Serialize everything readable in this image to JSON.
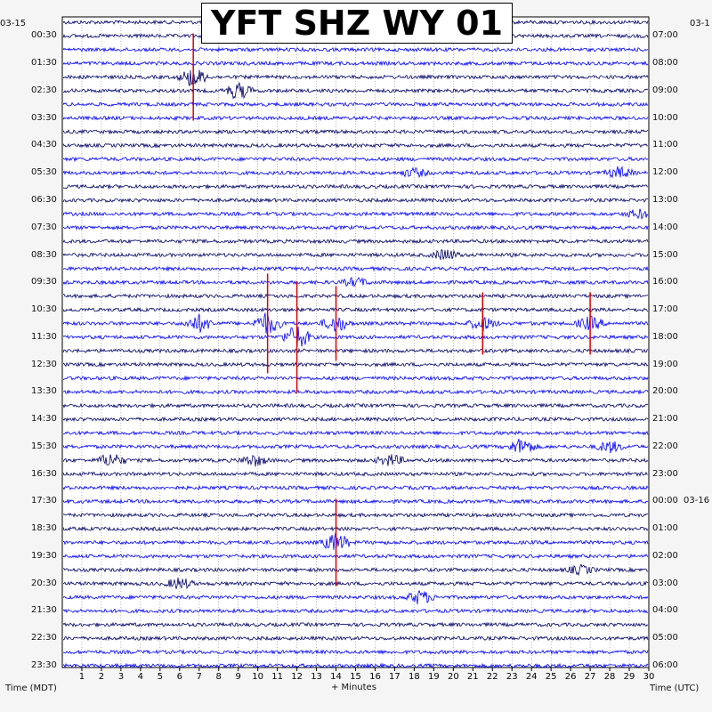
{
  "title": "YFT SHZ WY 01",
  "date_left": "03-15",
  "date_right_top": "03-1",
  "date_right_mid": "03-16",
  "xlabel": "+ Minutes",
  "left_axis_label": "Time (MDT)",
  "right_axis_label": "Time (UTC)",
  "colors": {
    "trace_a": "#000066",
    "trace_b": "#0000ff",
    "clipped": "#dd0000",
    "grid": "#888888"
  },
  "chart_data": {
    "type": "helicorder",
    "title": "YFT SHZ WY 01",
    "xlabel": "+ Minutes",
    "xlim": [
      0,
      30
    ],
    "x_ticks": [
      1,
      2,
      3,
      4,
      5,
      6,
      7,
      8,
      9,
      10,
      11,
      12,
      13,
      14,
      15,
      16,
      17,
      18,
      19,
      20,
      21,
      22,
      23,
      24,
      25,
      26,
      27,
      28,
      29,
      30
    ],
    "left_ticks": [
      "00:30",
      "01:30",
      "02:30",
      "03:30",
      "04:30",
      "05:30",
      "06:30",
      "07:30",
      "08:30",
      "09:30",
      "10:30",
      "11:30",
      "12:30",
      "13:30",
      "14:30",
      "15:30",
      "16:30",
      "17:30",
      "18:30",
      "19:30",
      "20:30",
      "21:30",
      "22:30",
      "23:30"
    ],
    "right_ticks": [
      "07:00",
      "08:00",
      "09:00",
      "10:00",
      "11:00",
      "12:00",
      "13:00",
      "14:00",
      "15:00",
      "16:00",
      "17:00",
      "18:00",
      "19:00",
      "20:00",
      "21:00",
      "22:00",
      "23:00",
      "00:00",
      "01:00",
      "02:00",
      "03:00",
      "04:00",
      "05:00",
      "06:00"
    ],
    "traces_per_label": 2,
    "events": [
      {
        "minute": 6.7,
        "line": 4,
        "amp": 3.5,
        "clipped": true
      },
      {
        "minute": 9.0,
        "line": 5,
        "amp": 3.0
      },
      {
        "minute": 18.0,
        "line": 11,
        "amp": 1.5
      },
      {
        "minute": 28.5,
        "line": 11,
        "amp": 2.0
      },
      {
        "minute": 29.5,
        "line": 14,
        "amp": 1.5
      },
      {
        "minute": 19.6,
        "line": 17,
        "amp": 2.0
      },
      {
        "minute": 15.0,
        "line": 19,
        "amp": 1.5
      },
      {
        "minute": 7.0,
        "line": 22,
        "amp": 3.0
      },
      {
        "minute": 10.5,
        "line": 22,
        "amp": 4.0,
        "clipped": true
      },
      {
        "minute": 12.0,
        "line": 23,
        "amp": 4.5,
        "clipped": true
      },
      {
        "minute": 14.0,
        "line": 22,
        "amp": 3.0,
        "clipped": true
      },
      {
        "minute": 21.5,
        "line": 22,
        "amp": 2.5,
        "clipped": true
      },
      {
        "minute": 27.0,
        "line": 22,
        "amp": 2.5,
        "clipped": true
      },
      {
        "minute": 23.5,
        "line": 31,
        "amp": 3.0
      },
      {
        "minute": 28.0,
        "line": 31,
        "amp": 2.0
      },
      {
        "minute": 2.5,
        "line": 32,
        "amp": 2.5
      },
      {
        "minute": 9.8,
        "line": 32,
        "amp": 2.0
      },
      {
        "minute": 16.8,
        "line": 32,
        "amp": 2.0
      },
      {
        "minute": 14.0,
        "line": 38,
        "amp": 3.5,
        "clipped": true
      },
      {
        "minute": 26.5,
        "line": 40,
        "amp": 1.5
      },
      {
        "minute": 6.0,
        "line": 41,
        "amp": 2.0
      },
      {
        "minute": 18.3,
        "line": 42,
        "amp": 2.5
      }
    ]
  }
}
